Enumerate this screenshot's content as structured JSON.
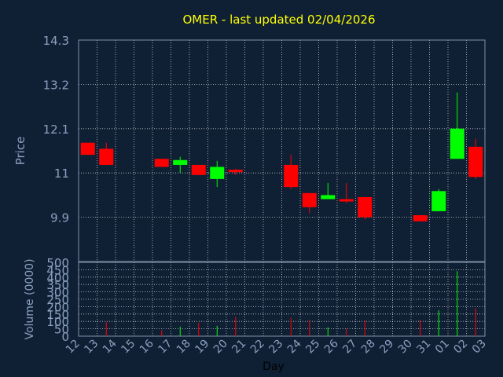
{
  "title": "OMER - last updated 02/04/2026",
  "colors": {
    "background": "#102034",
    "axis_text": "#8aa0c0",
    "title_text": "#ffff00",
    "grid": "#ffffff",
    "up": "#00ff00",
    "down": "#ff0000",
    "xlabel_text": "#000000"
  },
  "chart_data": [
    {
      "type": "candlestick",
      "ylabel": "Price",
      "ylim": [
        8.8,
        14.3
      ],
      "yticks": [
        "14.3",
        "13.2",
        "12.1",
        "11",
        "9.9"
      ],
      "grid": true,
      "x_labels": [
        "12",
        "13",
        "14",
        "15",
        "16",
        "17",
        "18",
        "19",
        "20",
        "21",
        "22",
        "23",
        "24",
        "25",
        "26",
        "27",
        "28",
        "29",
        "30",
        "31",
        "01",
        "02",
        "03"
      ],
      "candles": [
        {
          "day": "12",
          "open": 11.75,
          "high": 11.75,
          "low": 11.45,
          "close": 11.45
        },
        {
          "day": "13",
          "open": 11.6,
          "high": 11.75,
          "low": 11.2,
          "close": 11.2
        },
        {
          "day": "16",
          "open": 11.35,
          "high": 11.35,
          "low": 11.15,
          "close": 11.15
        },
        {
          "day": "17",
          "open": 11.2,
          "high": 11.4,
          "low": 11.0,
          "close": 11.32
        },
        {
          "day": "18",
          "open": 11.2,
          "high": 11.2,
          "low": 10.95,
          "close": 10.95
        },
        {
          "day": "19",
          "open": 10.85,
          "high": 11.3,
          "low": 10.65,
          "close": 11.15
        },
        {
          "day": "20",
          "open": 11.08,
          "high": 11.1,
          "low": 10.95,
          "close": 11.02
        },
        {
          "day": "23",
          "open": 11.2,
          "high": 11.45,
          "low": 10.6,
          "close": 10.65
        },
        {
          "day": "24",
          "open": 10.5,
          "high": 10.5,
          "low": 10.0,
          "close": 10.15
        },
        {
          "day": "25",
          "open": 10.35,
          "high": 10.75,
          "low": 10.35,
          "close": 10.45
        },
        {
          "day": "26",
          "open": 10.35,
          "high": 10.75,
          "low": 10.25,
          "close": 10.3
        },
        {
          "day": "27",
          "open": 10.4,
          "high": 10.4,
          "low": 9.85,
          "close": 9.9
        },
        {
          "day": "30",
          "open": 9.95,
          "high": 9.95,
          "low": 9.8,
          "close": 9.8
        },
        {
          "day": "31",
          "open": 10.05,
          "high": 10.6,
          "low": 10.05,
          "close": 10.55
        },
        {
          "day": "01",
          "open": 11.35,
          "high": 13.0,
          "low": 11.35,
          "close": 12.1
        },
        {
          "day": "02",
          "open": 11.65,
          "high": 11.85,
          "low": 10.85,
          "close": 10.9
        }
      ]
    },
    {
      "type": "bar",
      "ylabel": "Volume (0000)",
      "xlabel": "Day",
      "ylim": [
        0,
        500
      ],
      "yticks": [
        "500",
        "450",
        "400",
        "350",
        "300",
        "250",
        "200",
        "150",
        "100",
        "50",
        "0"
      ],
      "grid": true,
      "volumes": [
        {
          "day": "13",
          "value": 95,
          "dir": "down"
        },
        {
          "day": "16",
          "value": 40,
          "dir": "down"
        },
        {
          "day": "17",
          "value": 65,
          "dir": "up"
        },
        {
          "day": "18",
          "value": 90,
          "dir": "down"
        },
        {
          "day": "19",
          "value": 70,
          "dir": "up"
        },
        {
          "day": "20",
          "value": 130,
          "dir": "down"
        },
        {
          "day": "23",
          "value": 125,
          "dir": "down"
        },
        {
          "day": "24",
          "value": 110,
          "dir": "down"
        },
        {
          "day": "25",
          "value": 60,
          "dir": "up"
        },
        {
          "day": "26",
          "value": 50,
          "dir": "down"
        },
        {
          "day": "27",
          "value": 105,
          "dir": "down"
        },
        {
          "day": "30",
          "value": 110,
          "dir": "down"
        },
        {
          "day": "31",
          "value": 175,
          "dir": "up"
        },
        {
          "day": "01",
          "value": 440,
          "dir": "up"
        },
        {
          "day": "02",
          "value": 190,
          "dir": "down"
        }
      ]
    }
  ]
}
